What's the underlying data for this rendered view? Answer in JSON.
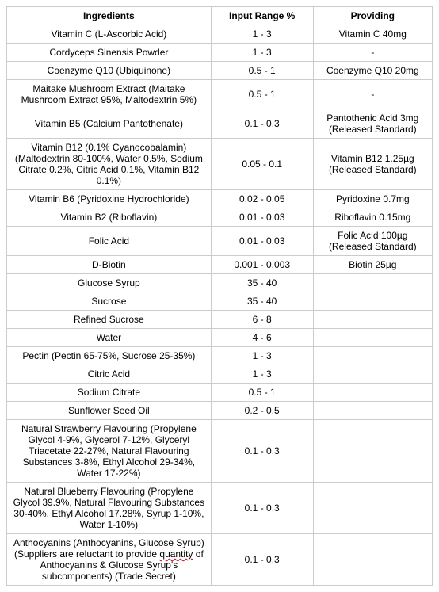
{
  "table": {
    "columns": [
      "Ingredients",
      "Input Range %",
      "Providing"
    ],
    "rows": [
      {
        "ingredient": "Vitamin C (L-Ascorbic Acid)",
        "range": "1 - 3",
        "providing": "Vitamin C 40mg"
      },
      {
        "ingredient": "Cordyceps Sinensis Powder",
        "range": "1 - 3",
        "providing": "-"
      },
      {
        "ingredient": "Coenzyme Q10 (Ubiquinone)",
        "range": "0.5 - 1",
        "providing": "Coenzyme Q10 20mg"
      },
      {
        "ingredient": "Maitake Mushroom Extract (Maitake Mushroom Extract 95%, Maltodextrin 5%)",
        "range": "0.5 - 1",
        "providing": "-"
      },
      {
        "ingredient": "Vitamin B5 (Calcium Pantothenate)",
        "range": "0.1 - 0.3",
        "providing": "Pantothenic Acid 3mg (Released Standard)"
      },
      {
        "ingredient": "Vitamin B12 (0.1% Cyanocobalamin) (Maltodextrin 80-100%, Water 0.5%, Sodium Citrate 0.2%, Citric Acid 0.1%, Vitamin B12 0.1%)",
        "range": "0.05 - 0.1",
        "providing": "Vitamin B12 1.25µg (Released Standard)"
      },
      {
        "ingredient": "Vitamin B6 (Pyridoxine Hydrochloride)",
        "range": "0.02 - 0.05",
        "providing": "Pyridoxine 0.7mg"
      },
      {
        "ingredient": "Vitamin B2 (Riboflavin)",
        "range": "0.01 - 0.03",
        "providing": "Riboflavin 0.15mg"
      },
      {
        "ingredient": "Folic Acid",
        "range": "0.01 - 0.03",
        "providing": "Folic Acid 100µg (Released Standard)"
      },
      {
        "ingredient": "D-Biotin",
        "range": "0.001 - 0.003",
        "providing": "Biotin 25µg"
      },
      {
        "ingredient": "Glucose Syrup",
        "range": "35 - 40",
        "providing": ""
      },
      {
        "ingredient": "Sucrose",
        "range": "35 - 40",
        "providing": ""
      },
      {
        "ingredient": "Refined Sucrose",
        "range": "6 - 8",
        "providing": ""
      },
      {
        "ingredient": "Water",
        "range": "4 - 6",
        "providing": ""
      },
      {
        "ingredient": "Pectin (Pectin 65-75%, Sucrose 25-35%)",
        "range": "1 - 3",
        "providing": ""
      },
      {
        "ingredient": "Citric Acid",
        "range": "1 - 3",
        "providing": ""
      },
      {
        "ingredient": "Sodium Citrate",
        "range": "0.5 - 1",
        "providing": ""
      },
      {
        "ingredient": "Sunflower Seed Oil",
        "range": "0.2 - 0.5",
        "providing": ""
      },
      {
        "ingredient": "Natural Strawberry Flavouring (Propylene Glycol 4-9%, Glycerol 7-12%, Glyceryl Triacetate 22-27%, Natural Flavouring Substances 3-8%, Ethyl Alcohol 29-34%, Water 17-22%)",
        "range": "0.1 - 0.3",
        "providing": ""
      },
      {
        "ingredient": "Natural Blueberry Flavouring (Propylene Glycol 39.9%, Natural Flavouring Substances 30-40%, Ethyl Alcohol 17.28%, Syrup 1-10%, Water 1-10%)",
        "range": "0.1 - 0.3",
        "providing": ""
      }
    ],
    "last_row": {
      "pre": "Anthocyanins (Anthocyanins, Glucose Syrup) (Suppliers are reluctant to provide ",
      "squiggle": "quantity",
      "post": " of Anthocyanins & Glucose Syrup's subcomponents) (Trade Secret)",
      "range": "0.1 - 0.3",
      "providing": ""
    }
  }
}
